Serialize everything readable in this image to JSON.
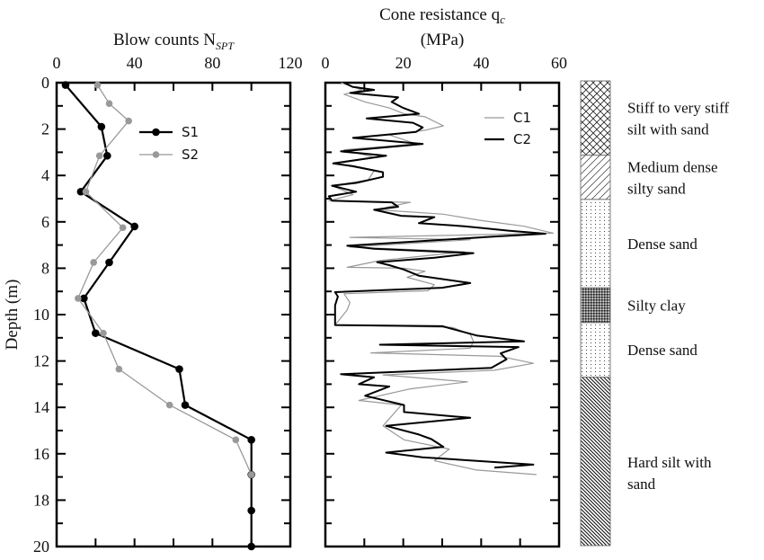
{
  "y_axis_label": "Depth (m)",
  "chart_data": [
    {
      "type": "line",
      "title": "Blow counts N",
      "title_subscript": "SPT",
      "xlabel": "",
      "ylabel": "Depth (m)",
      "xlim": [
        0,
        120
      ],
      "ylim": [
        0,
        20
      ],
      "y_inverted": true,
      "x_ticks": [
        "0",
        "40",
        "80",
        "120"
      ],
      "y_ticks": [
        "0",
        "2",
        "4",
        "6",
        "8",
        "10",
        "12",
        "14",
        "16",
        "18",
        "20"
      ],
      "legend_position": "top-right of data",
      "series": [
        {
          "name": "S1",
          "color": "#000000",
          "points": [
            [
              4.6,
              0.1
            ],
            [
              23,
              1.9
            ],
            [
              26,
              3.15
            ],
            [
              12.4,
              4.7
            ],
            [
              40,
              6.2
            ],
            [
              27,
              7.75
            ],
            [
              14,
              9.3
            ],
            [
              20,
              10.8
            ],
            [
              63,
              12.35
            ],
            [
              66,
              13.9
            ],
            [
              100,
              15.4
            ],
            [
              100,
              16.9
            ],
            [
              100,
              18.45
            ],
            [
              100,
              20
            ]
          ]
        },
        {
          "name": "S2",
          "color": "#999999",
          "points": [
            [
              21,
              0.1
            ],
            [
              27,
              0.9
            ],
            [
              37,
              1.65
            ],
            [
              22,
              3.15
            ],
            [
              15,
              4.7
            ],
            [
              34,
              6.25
            ],
            [
              19,
              7.75
            ],
            [
              11,
              9.3
            ],
            [
              24,
              10.8
            ],
            [
              32,
              12.35
            ],
            [
              58,
              13.9
            ],
            [
              92,
              15.4
            ],
            [
              100,
              16.9
            ]
          ]
        }
      ]
    },
    {
      "type": "line",
      "title": "Cone resistance q",
      "title_subscript": "c",
      "subtitle": "(MPa)",
      "xlim": [
        0,
        60
      ],
      "ylim": [
        0,
        20
      ],
      "y_inverted": true,
      "x_ticks": [
        "0",
        "20",
        "40",
        "60"
      ],
      "legend_position": "top-right",
      "series": [
        {
          "name": "C1",
          "color": "#999999",
          "points": [
            [
              4,
              0
            ],
            [
              9.4,
              0.31
            ],
            [
              4.8,
              0.5
            ],
            [
              10.2,
              0.83
            ],
            [
              16.4,
              1.09
            ],
            [
              20.2,
              1.34
            ],
            [
              25.6,
              1.47
            ],
            [
              30.3,
              1.86
            ],
            [
              25.6,
              2.05
            ],
            [
              16.4,
              2.25
            ],
            [
              23.3,
              2.64
            ],
            [
              4.8,
              2.89
            ],
            [
              12.5,
              3.22
            ],
            [
              2.5,
              3.48
            ],
            [
              12.5,
              3.8
            ],
            [
              11,
              4.19
            ],
            [
              1.7,
              4.44
            ],
            [
              7.1,
              4.83
            ],
            [
              0.9,
              5.09
            ],
            [
              21.8,
              5.16
            ],
            [
              16.4,
              5.35
            ],
            [
              13.3,
              5.48
            ],
            [
              30.3,
              5.67
            ],
            [
              39.5,
              5.93
            ],
            [
              51,
              6.19
            ],
            [
              58.5,
              6.49
            ],
            [
              6.3,
              6.67
            ],
            [
              37.2,
              6.77
            ],
            [
              6.3,
              7.09
            ],
            [
              35.7,
              7.29
            ],
            [
              14,
              7.67
            ],
            [
              5.6,
              7.96
            ],
            [
              20.2,
              8.0
            ],
            [
              25.6,
              8.13
            ],
            [
              21,
              8.39
            ],
            [
              28,
              8.71
            ],
            [
              26.4,
              8.97
            ],
            [
              4.8,
              9.1
            ],
            [
              6.3,
              9.48
            ],
            [
              5.6,
              9.8
            ],
            [
              2.5,
              10.45
            ],
            [
              32.6,
              10.55
            ],
            [
              37.2,
              10.85
            ],
            [
              38,
              11.15
            ],
            [
              37.2,
              11.45
            ],
            [
              11.7,
              11.65
            ],
            [
              44.9,
              11.8
            ],
            [
              53.4,
              12.1
            ],
            [
              43.4,
              12.4
            ],
            [
              14.8,
              12.6
            ],
            [
              36.5,
              12.9
            ],
            [
              21.8,
              13.2
            ],
            [
              8.6,
              13.7
            ],
            [
              19.5,
              13.9
            ],
            [
              14.8,
              14.8
            ],
            [
              20.2,
              15.4
            ],
            [
              31.8,
              15.8
            ],
            [
              28,
              16.3
            ],
            [
              38.8,
              16.7
            ],
            [
              54.2,
              16.9
            ]
          ]
        },
        {
          "name": "C2",
          "color": "#000000",
          "points": [
            [
              4.8,
              0
            ],
            [
              7,
              0.18
            ],
            [
              12.5,
              0.31
            ],
            [
              6.4,
              0.44
            ],
            [
              18.7,
              0.63
            ],
            [
              17,
              0.83
            ],
            [
              20,
              1.09
            ],
            [
              24,
              1.34
            ],
            [
              10.6,
              1.54
            ],
            [
              22.5,
              1.73
            ],
            [
              25,
              1.93
            ],
            [
              23.3,
              2.12
            ],
            [
              7.1,
              2.38
            ],
            [
              25,
              2.64
            ],
            [
              4,
              2.96
            ],
            [
              15.6,
              3.15
            ],
            [
              2,
              3.48
            ],
            [
              7.1,
              3.6
            ],
            [
              14.8,
              3.86
            ],
            [
              14.8,
              4.06
            ],
            [
              7.9,
              4.32
            ],
            [
              1.7,
              4.44
            ],
            [
              7.9,
              4.7
            ],
            [
              0.9,
              4.9
            ],
            [
              1.7,
              5.09
            ],
            [
              17,
              5.16
            ],
            [
              18.7,
              5.35
            ],
            [
              12.5,
              5.48
            ],
            [
              19.5,
              5.74
            ],
            [
              28,
              5.8
            ],
            [
              24,
              6.06
            ],
            [
              35.7,
              6.19
            ],
            [
              47,
              6.38
            ],
            [
              56.5,
              6.51
            ],
            [
              43,
              6.64
            ],
            [
              5.6,
              7.03
            ],
            [
              12.5,
              7.16
            ],
            [
              38,
              7.35
            ],
            [
              28,
              7.55
            ],
            [
              13.3,
              7.74
            ],
            [
              16.4,
              7.87
            ],
            [
              20.2,
              8.06
            ],
            [
              24,
              8.32
            ],
            [
              37.2,
              8.64
            ],
            [
              30,
              8.84
            ],
            [
              2.5,
              9.03
            ],
            [
              3.2,
              9.22
            ],
            [
              2.5,
              9.6
            ],
            [
              2.5,
              10.45
            ],
            [
              30,
              10.5
            ],
            [
              38.8,
              10.9
            ],
            [
              51,
              11.15
            ],
            [
              14,
              11.3
            ],
            [
              49.6,
              11.4
            ],
            [
              45,
              11.67
            ],
            [
              46.5,
              11.93
            ],
            [
              42.6,
              12.3
            ],
            [
              4,
              12.57
            ],
            [
              12.5,
              12.7
            ],
            [
              8.6,
              13.0
            ],
            [
              16.4,
              13.1
            ],
            [
              10.2,
              13.5
            ],
            [
              20.2,
              13.9
            ],
            [
              20.2,
              14.2
            ],
            [
              37.2,
              14.45
            ],
            [
              15.6,
              14.8
            ],
            [
              24,
              15.17
            ],
            [
              27.2,
              15.37
            ],
            [
              30.3,
              15.7
            ],
            [
              15.6,
              15.95
            ],
            [
              24.9,
              16.15
            ],
            [
              53.4,
              16.47
            ],
            [
              43.4,
              16.6
            ]
          ]
        }
      ]
    }
  ],
  "soil_profile": [
    {
      "top": 0,
      "bottom": 3.2,
      "pattern": "crosshatch",
      "label_lines": [
        "Stiff to very stiff",
        "silt with sand"
      ]
    },
    {
      "top": 3.2,
      "bottom": 5.1,
      "pattern": "diagonal-forward",
      "label_lines": [
        "Medium dense",
        "silty sand"
      ]
    },
    {
      "top": 5.1,
      "bottom": 8.9,
      "pattern": "dots",
      "label_lines": [
        "Dense sand"
      ]
    },
    {
      "top": 8.9,
      "bottom": 10.4,
      "pattern": "dense-checker",
      "label_lines": [
        "Silty clay"
      ]
    },
    {
      "top": 10.4,
      "bottom": 12.75,
      "pattern": "dots",
      "label_lines": [
        "Dense sand"
      ]
    },
    {
      "top": 12.75,
      "bottom": 20,
      "pattern": "diagonal-back-dense",
      "label_lines": [
        "Hard silt with",
        "sand"
      ]
    }
  ]
}
